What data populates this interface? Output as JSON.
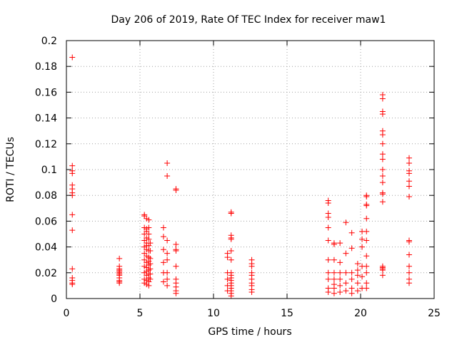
{
  "chart_data": {
    "type": "scatter",
    "title": "Day 206 of 2019, Rate Of TEC Index for receiver maw1",
    "xlabel": "GPS time / hours",
    "ylabel": "ROTI / TECUs",
    "xlim": [
      0,
      25
    ],
    "ylim": [
      0,
      0.2
    ],
    "x_ticks": [
      0,
      5,
      10,
      15,
      20,
      25
    ],
    "x_tick_labels": [
      "0",
      "5",
      "10",
      "15",
      "20",
      "25"
    ],
    "y_ticks": [
      0,
      0.02,
      0.04,
      0.06,
      0.08,
      0.1,
      0.12,
      0.14,
      0.16,
      0.18,
      0.2
    ],
    "y_tick_labels": [
      "0",
      "0.02",
      "0.04",
      "0.06",
      "0.08",
      "0.1",
      "0.12",
      "0.14",
      "0.16",
      "0.18",
      "0.2"
    ],
    "grid": true,
    "marker": "+",
    "color": "#ff0000",
    "series": [
      {
        "name": "ROTI",
        "x": [
          0.4,
          0.4,
          0.4,
          0.4,
          0.4,
          0.4,
          0.4,
          0.4,
          0.4,
          0.4,
          0.4,
          0.4,
          0.4,
          0.4,
          0.4,
          3.6,
          3.6,
          3.6,
          3.6,
          3.6,
          3.6,
          3.6,
          3.6,
          3.6,
          3.6,
          3.6,
          3.6,
          5.3,
          5.3,
          5.3,
          5.3,
          5.3,
          5.3,
          5.3,
          5.3,
          5.3,
          5.3,
          5.3,
          5.3,
          5.45,
          5.45,
          5.45,
          5.45,
          5.45,
          5.45,
          5.45,
          5.45,
          5.45,
          5.45,
          5.45,
          5.45,
          5.45,
          5.45,
          5.6,
          5.6,
          5.6,
          5.6,
          5.6,
          5.6,
          5.6,
          5.6,
          5.6,
          5.6,
          5.6,
          5.6,
          5.6,
          5.6,
          5.7,
          5.7,
          5.7,
          5.7,
          5.7,
          5.7,
          5.7,
          6.6,
          6.6,
          6.6,
          6.6,
          6.6,
          6.6,
          6.85,
          6.85,
          6.85,
          6.85,
          6.85,
          6.85,
          6.85,
          6.85,
          7.45,
          7.45,
          7.45,
          7.45,
          7.45,
          7.45,
          7.45,
          7.45,
          7.45,
          7.45,
          7.45,
          10.95,
          10.95,
          10.95,
          10.95,
          10.95,
          10.95,
          11.2,
          11.2,
          11.2,
          11.2,
          11.2,
          11.2,
          11.2,
          11.2,
          11.2,
          11.2,
          11.2,
          11.2,
          11.2,
          11.2,
          11.2,
          11.2,
          11.2,
          12.6,
          12.6,
          12.6,
          12.6,
          12.6,
          12.6,
          12.6,
          12.6,
          12.6,
          12.6,
          17.8,
          17.8,
          17.8,
          17.8,
          17.8,
          17.8,
          17.8,
          17.8,
          17.8,
          17.8,
          17.8,
          18.2,
          18.2,
          18.2,
          18.2,
          18.2,
          18.2,
          18.2,
          18.2,
          18.6,
          18.6,
          18.6,
          18.6,
          18.6,
          18.6,
          19.0,
          19.0,
          19.0,
          19.0,
          19.0,
          19.4,
          19.4,
          19.4,
          19.4,
          19.4,
          19.4,
          19.8,
          19.8,
          19.8,
          19.8,
          19.8,
          20.1,
          20.1,
          20.1,
          20.1,
          20.1,
          20.1,
          20.4,
          20.4,
          20.4,
          20.4,
          20.4,
          20.4,
          20.4,
          20.4,
          20.4,
          20.4,
          20.4,
          20.4,
          21.5,
          21.5,
          21.5,
          21.5,
          21.5,
          21.5,
          21.5,
          21.5,
          21.5,
          21.5,
          21.5,
          21.5,
          21.5,
          21.5,
          21.5,
          21.5,
          21.5,
          21.5,
          21.5,
          21.5,
          23.3,
          23.3,
          23.3,
          23.3,
          23.3,
          23.3,
          23.3,
          23.3,
          23.3,
          23.3,
          23.3,
          23.3,
          23.3,
          23.3
        ],
        "y": [
          0.187,
          0.103,
          0.099,
          0.097,
          0.088,
          0.085,
          0.082,
          0.08,
          0.065,
          0.053,
          0.023,
          0.016,
          0.014,
          0.012,
          0.011,
          0.031,
          0.025,
          0.023,
          0.022,
          0.021,
          0.02,
          0.019,
          0.018,
          0.016,
          0.014,
          0.013,
          0.012,
          0.065,
          0.064,
          0.055,
          0.05,
          0.045,
          0.04,
          0.035,
          0.03,
          0.025,
          0.02,
          0.015,
          0.012,
          0.062,
          0.054,
          0.052,
          0.047,
          0.043,
          0.041,
          0.038,
          0.033,
          0.028,
          0.024,
          0.021,
          0.018,
          0.014,
          0.011,
          0.061,
          0.055,
          0.05,
          0.046,
          0.041,
          0.037,
          0.032,
          0.029,
          0.026,
          0.022,
          0.019,
          0.016,
          0.013,
          0.01,
          0.043,
          0.037,
          0.031,
          0.027,
          0.023,
          0.019,
          0.015,
          0.055,
          0.048,
          0.038,
          0.028,
          0.02,
          0.013,
          0.105,
          0.095,
          0.045,
          0.035,
          0.03,
          0.02,
          0.015,
          0.01,
          0.085,
          0.084,
          0.042,
          0.038,
          0.037,
          0.025,
          0.015,
          0.012,
          0.009,
          0.006,
          0.004,
          0.035,
          0.032,
          0.02,
          0.015,
          0.01,
          0.006,
          0.067,
          0.066,
          0.049,
          0.047,
          0.046,
          0.037,
          0.03,
          0.02,
          0.018,
          0.016,
          0.014,
          0.012,
          0.01,
          0.008,
          0.006,
          0.004,
          0.002,
          0.03,
          0.027,
          0.025,
          0.02,
          0.018,
          0.015,
          0.012,
          0.01,
          0.007,
          0.005,
          0.076,
          0.074,
          0.066,
          0.063,
          0.055,
          0.045,
          0.03,
          0.02,
          0.015,
          0.008,
          0.005,
          0.043,
          0.042,
          0.03,
          0.02,
          0.015,
          0.011,
          0.008,
          0.004,
          0.043,
          0.028,
          0.02,
          0.015,
          0.01,
          0.005,
          0.059,
          0.035,
          0.02,
          0.012,
          0.006,
          0.051,
          0.039,
          0.02,
          0.015,
          0.008,
          0.004,
          0.027,
          0.022,
          0.018,
          0.012,
          0.006,
          0.052,
          0.046,
          0.04,
          0.025,
          0.017,
          0.008,
          0.08,
          0.079,
          0.073,
          0.072,
          0.062,
          0.052,
          0.045,
          0.033,
          0.025,
          0.02,
          0.012,
          0.008,
          0.158,
          0.155,
          0.145,
          0.143,
          0.13,
          0.127,
          0.12,
          0.112,
          0.108,
          0.1,
          0.095,
          0.09,
          0.082,
          0.081,
          0.075,
          0.025,
          0.024,
          0.023,
          0.022,
          0.018,
          0.109,
          0.105,
          0.099,
          0.097,
          0.091,
          0.087,
          0.079,
          0.045,
          0.044,
          0.034,
          0.025,
          0.02,
          0.015,
          0.012
        ]
      }
    ]
  }
}
